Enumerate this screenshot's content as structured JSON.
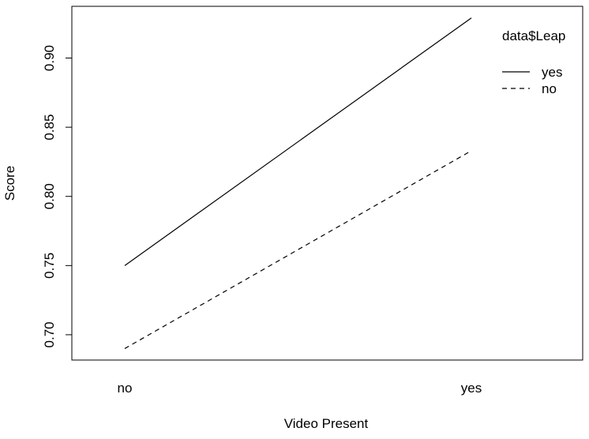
{
  "chart_data": {
    "type": "line",
    "categories": [
      "no",
      "yes"
    ],
    "xlabel": "Video Present",
    "ylabel": "Score",
    "ylim": [
      0.6817,
      0.9374
    ],
    "yticks": [
      0.7,
      0.75,
      0.8,
      0.85,
      0.9
    ],
    "grid": false,
    "legend": {
      "title": "data$Leap",
      "placement": "top-right"
    },
    "series": [
      {
        "name": "yes",
        "line_style": "solid",
        "color": "#000000",
        "values": [
          0.75,
          0.929
        ]
      },
      {
        "name": "no",
        "line_style": "dashed",
        "color": "#000000",
        "values": [
          0.69,
          0.833
        ]
      }
    ]
  }
}
